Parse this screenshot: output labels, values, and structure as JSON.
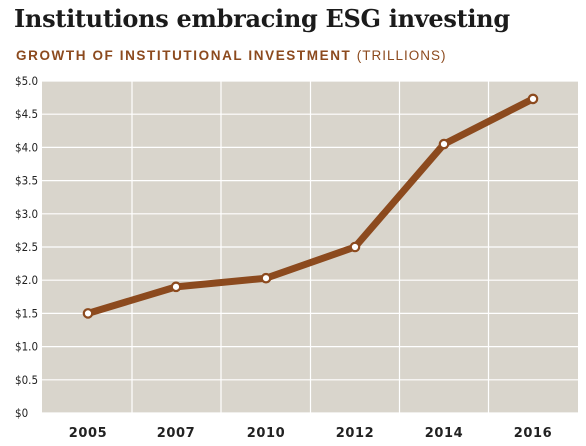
{
  "title": "Institutions embracing ESG investing",
  "subtitle": "GROWTH OF INSTITUTIONAL INVESTMENT",
  "subtitle_unit": "(TRILLIONS)",
  "colors": {
    "line": "#8c4a1e",
    "plot_bg": "#d9d5cc",
    "grid": "#ffffff"
  },
  "chart_data": {
    "type": "line",
    "title": "Institutions embracing ESG investing",
    "subtitle": "GROWTH OF INSTITUTIONAL INVESTMENT (TRILLIONS)",
    "categories": [
      "2005",
      "2007",
      "2010",
      "2012",
      "2014",
      "2016"
    ],
    "values": [
      1.5,
      1.9,
      2.03,
      2.5,
      4.05,
      4.73
    ],
    "ylim": [
      0,
      5
    ],
    "yticks": [
      "$0",
      "$0.5",
      "$1.0",
      "$1.5",
      "$2.0",
      "$2.5",
      "$3.0",
      "$3.5",
      "$4.0",
      "$4.5",
      "$5.0"
    ],
    "grid": true,
    "xlabel": "",
    "ylabel": ""
  }
}
